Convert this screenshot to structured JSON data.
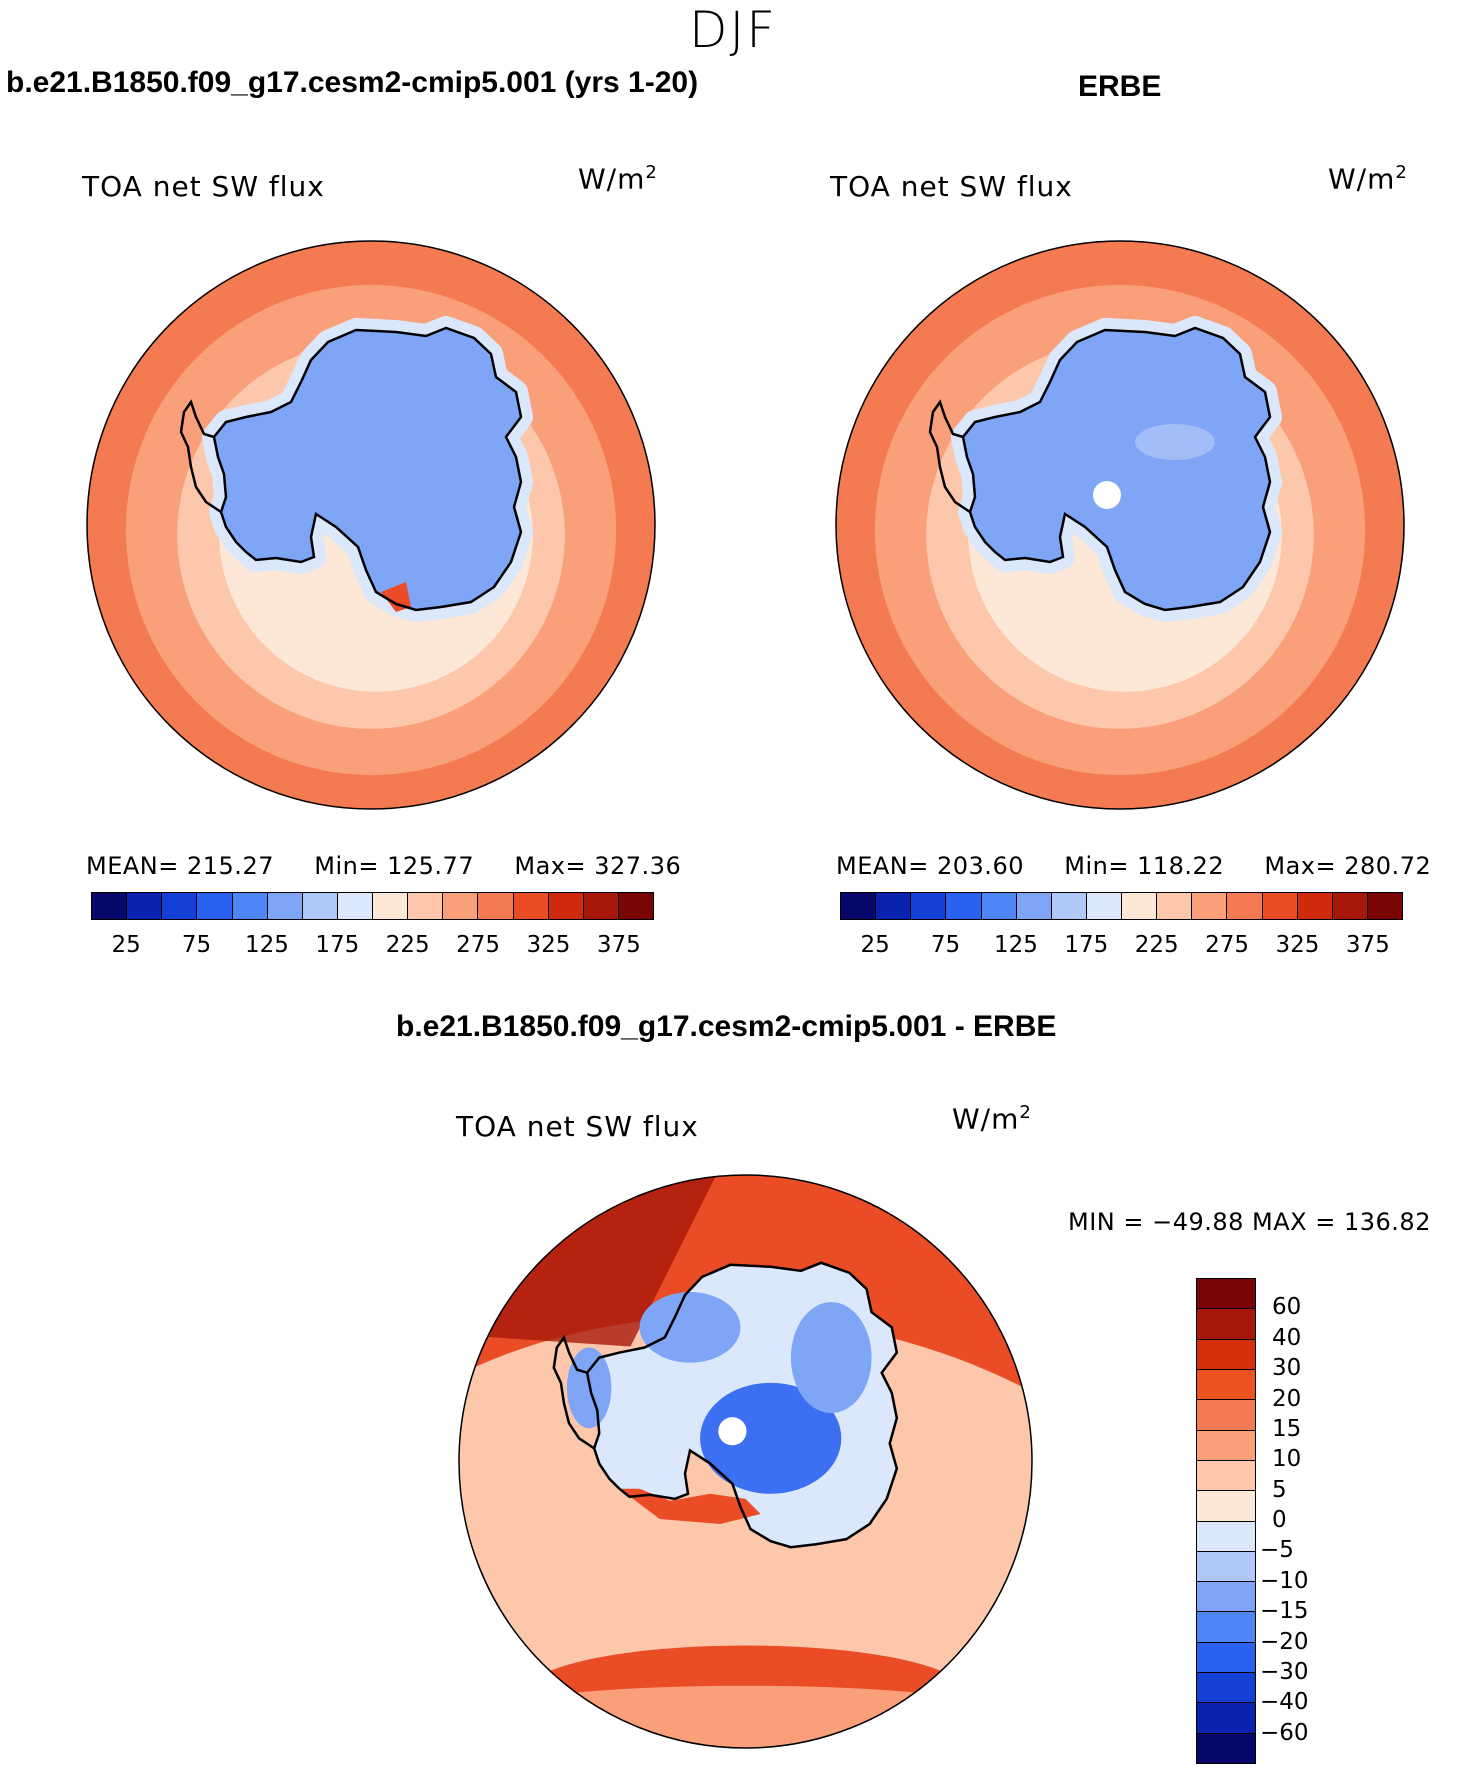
{
  "figure": {
    "season": "DJF"
  },
  "panels": [
    {
      "title": "b.e21.B1850.f09_g17.cesm2-cmip5.001 (yrs 1-20)",
      "variable": "TOA net SW flux",
      "units_base": "W/m",
      "units_exp": "2",
      "stats": {
        "mean_label": "MEAN=",
        "mean": "215.27",
        "min_label": "Min=",
        "min": "125.77",
        "max_label": "Max=",
        "max": "327.36"
      }
    },
    {
      "title": "ERBE",
      "variable": "TOA net SW flux",
      "units_base": "W/m",
      "units_exp": "2",
      "stats": {
        "mean_label": "MEAN=",
        "mean": "203.60",
        "min_label": "Min=",
        "min": "118.22",
        "max_label": "Max=",
        "max": "280.72"
      }
    },
    {
      "title": "b.e21.B1850.f09_g17.cesm2-cmip5.001 - ERBE",
      "variable": "TOA net SW flux",
      "units_base": "W/m",
      "units_exp": "2",
      "minmax": "MIN = −49.88 MAX = 136.82"
    }
  ],
  "abs_colorbar": {
    "colors": [
      "#08086b",
      "#0a22b0",
      "#1540d8",
      "#2a62f0",
      "#4f86f6",
      "#7fa6f6",
      "#b0c8f8",
      "#dbe8fb",
      "#fde7d6",
      "#fcc7ab",
      "#f9a07b",
      "#f47a52",
      "#ea4c26",
      "#d02b0c",
      "#a8180a",
      "#7a0505"
    ],
    "tick_labels": [
      "25",
      "75",
      "125",
      "175",
      "225",
      "275",
      "325",
      "375"
    ]
  },
  "diff_colorbar": {
    "colors_top_to_bottom": [
      "#7a0505",
      "#a8180a",
      "#d4300c",
      "#ec5320",
      "#f47a52",
      "#f9a07b",
      "#fcc7ab",
      "#fde7d6",
      "#dbe8fb",
      "#b0c8f8",
      "#7fa6f6",
      "#4f86f6",
      "#2a62f0",
      "#1540d8",
      "#0a22b0",
      "#08086b"
    ],
    "tick_labels": [
      "60",
      "40",
      "30",
      "20",
      "15",
      "10",
      "5",
      "0",
      "−5",
      "−10",
      "−15",
      "−20",
      "−30",
      "−40",
      "−60"
    ]
  },
  "map_colors": {
    "ocean_outer": "#f47a52",
    "ocean_mid": "#f9a07b",
    "ocean_inner": "#fcc7ab",
    "ice_edge": "#fde7d6",
    "coast_band": "#dbe8fb",
    "land": "#7fa6f6",
    "land_light": "#b0c8f8",
    "hot": "#ea4c26",
    "deep_red": "#a8180a",
    "blue_dark": "#2a62f0",
    "coastline": "#000000"
  }
}
